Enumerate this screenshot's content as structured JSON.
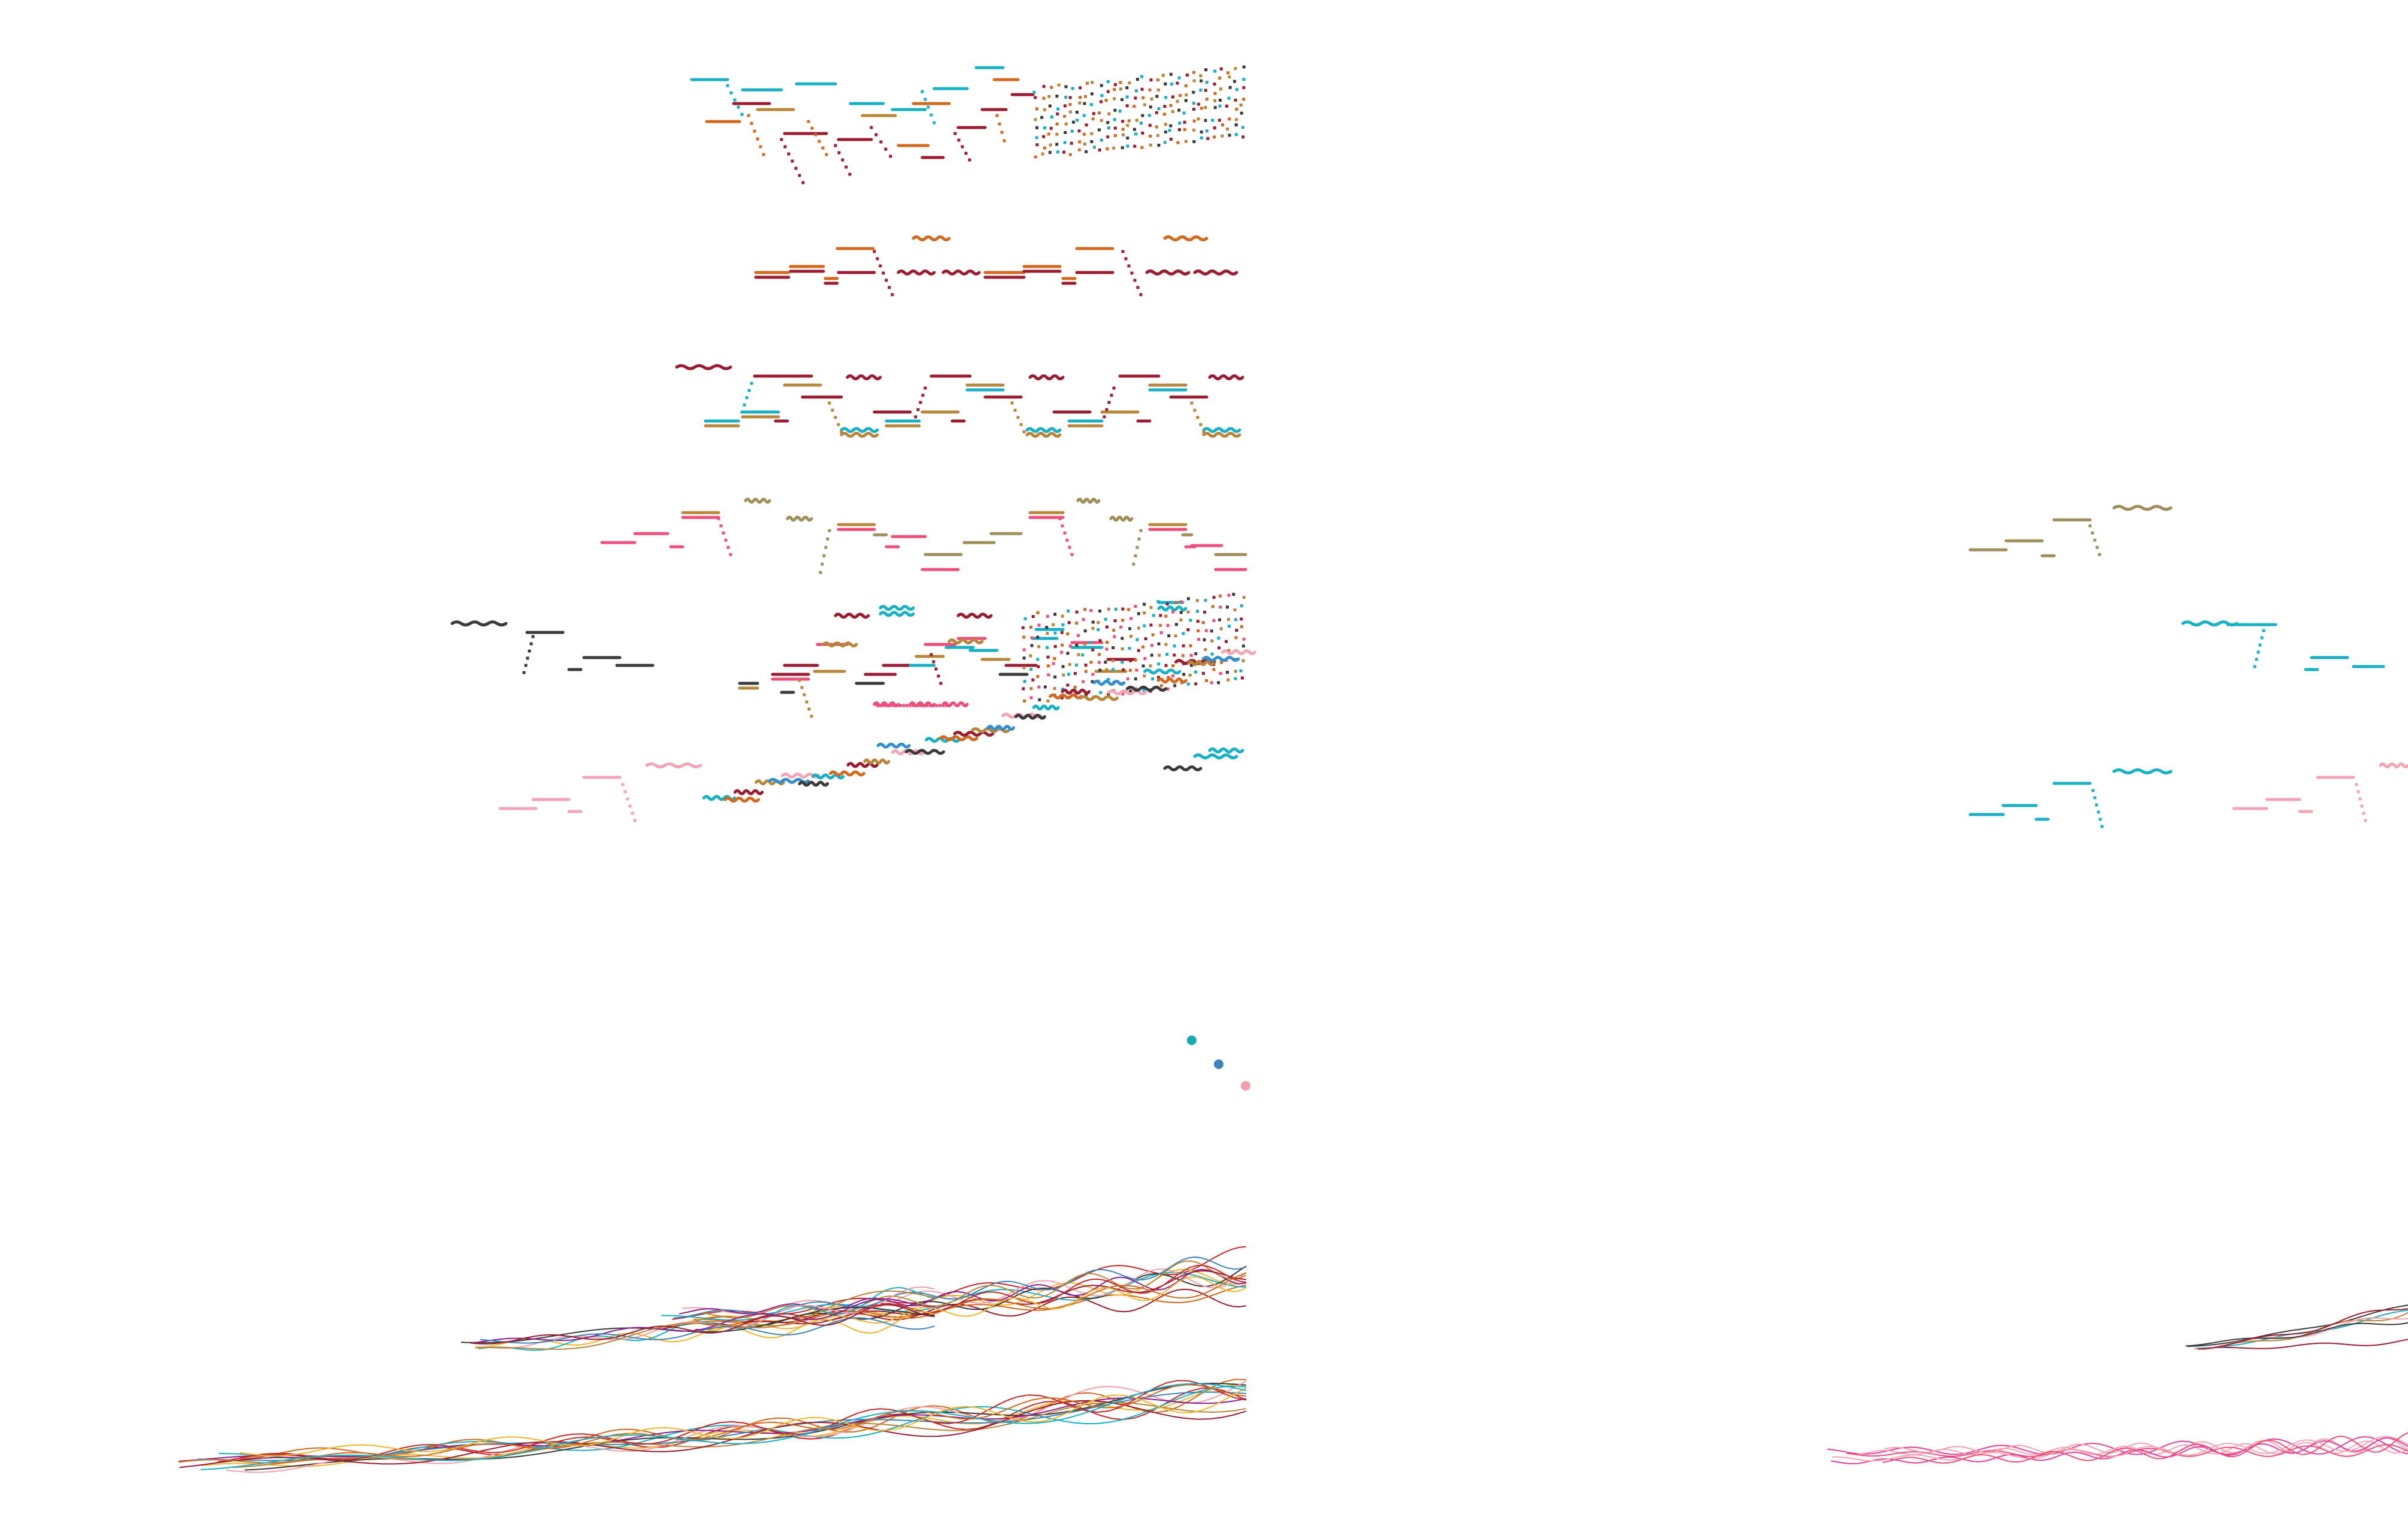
{
  "palette": {
    "teal": "#17b0c4",
    "orange": "#d2691e",
    "crimson": "#9b1b30",
    "ochre": "#b8863b",
    "olive": "#9e8f5a",
    "pink": "#ef4d7a",
    "lightpink": "#f3a5b5",
    "charcoal": "#3a3a3a",
    "blue": "#2f8fd0",
    "steelblue": "#3d84b8",
    "salmon": "#f4a0a8",
    "purple": "#8b1f8f",
    "gold": "#f0b52a",
    "red": "#c62828",
    "magenta": "#e0409a"
  },
  "legend_dots": [
    {
      "name": "teal-dot",
      "color": "#17a9b4"
    },
    {
      "name": "steelblue-dot",
      "color": "#3d84b8"
    },
    {
      "name": "salmon-dot",
      "color": "#f4a0a8"
    }
  ]
}
